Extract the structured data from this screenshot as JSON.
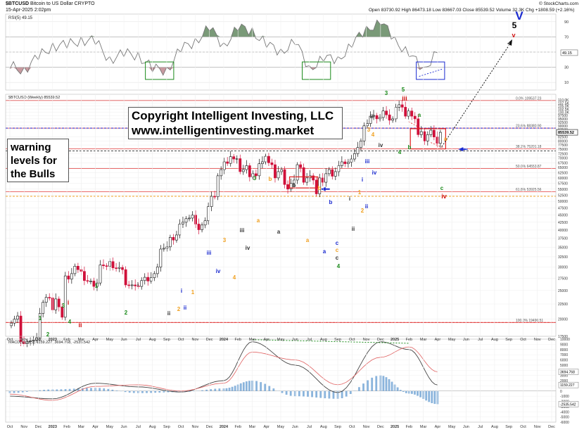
{
  "header": {
    "symbol": "$BTCUSD",
    "name": "Bitcoin to US Dollar",
    "exchange": "CRYPTO",
    "date": "15-Apr-2025 2:02pm",
    "ohlc": "Open 83730.92  High 86473.18  Low 83667.03  Close 85539.52  Volume 32.3K  Chg +1808.59 (+2.16%)",
    "credit": "© StockCharts.com"
  },
  "overlays": {
    "copyright_line1": "Copyright Intelligent Investing, LLC",
    "copyright_line2": "www.intelligentinvesting.market",
    "warning_line1": "warning",
    "warning_line2": "levels for",
    "warning_line3": "the Bulls"
  },
  "colors": {
    "up": "#111111",
    "down": "#d0103a",
    "fib": "#e03a3a",
    "blue_dashed": "#2222cc",
    "orange_dashed": "#f0a020",
    "rsi_fill_over": "#7a9a78",
    "rsi_fill_under": "#c89aa0",
    "macd_hist": "#8ab4dc",
    "wave_green": "#1a8a1a",
    "wave_orange": "#f0a020",
    "wave_blue": "#1a2ad0",
    "wave_red": "#d01010"
  },
  "chart_data": [
    {
      "type": "line",
      "title": "RSI(5) 49.15",
      "ylim": [
        0,
        100
      ],
      "yticks": [
        10,
        30,
        50,
        70,
        90
      ],
      "levels": [
        30,
        70
      ],
      "last_value_label": "49.15",
      "x": [
        "2022-10",
        "2022-11",
        "2022-12",
        "2023-01",
        "2023-02",
        "2023-03",
        "2023-04",
        "2023-05",
        "2023-06",
        "2023-07",
        "2023-08",
        "2023-09",
        "2023-10",
        "2023-11",
        "2023-12",
        "2024-01",
        "2024-02",
        "2024-03",
        "2024-04",
        "2024-05",
        "2024-06",
        "2024-07",
        "2024-08",
        "2024-09",
        "2024-10",
        "2024-11",
        "2024-12",
        "2025-01",
        "2025-02",
        "2025-03",
        "2025-04"
      ],
      "values": [
        28,
        30,
        40,
        62,
        55,
        70,
        60,
        44,
        44,
        50,
        24,
        30,
        50,
        68,
        78,
        62,
        78,
        82,
        56,
        54,
        60,
        32,
        38,
        44,
        56,
        84,
        86,
        70,
        44,
        30,
        49.15
      ]
    },
    {
      "type": "bar",
      "title": "$BTCUSD (Weekly) 85539.52",
      "scale": "log",
      "ylim": [
        17500,
        115000
      ],
      "last_price_label": "85539.52",
      "y_tick_labels": [
        "110.0K",
        "107.5K",
        "105.0K",
        "102.5K",
        "100.0K",
        "97500",
        "95000",
        "92500",
        "90000",
        "87500",
        "82500",
        "80000",
        "77500",
        "75000",
        "72500",
        "70000",
        "67500",
        "65000",
        "62500",
        "60000",
        "57500",
        "55000",
        "52500",
        "50000",
        "47500",
        "45000",
        "42500",
        "40000",
        "37500",
        "35000",
        "32500",
        "30000",
        "27500",
        "25000",
        "22500",
        "20000",
        "17500"
      ],
      "x_tick_labels": [
        "Oct",
        "Nov",
        "Dec",
        "2023",
        "Feb",
        "Mar",
        "Apr",
        "May",
        "Jun",
        "Jul",
        "Aug",
        "Sep",
        "Oct",
        "Nov",
        "Dec",
        "2024",
        "Feb",
        "Mar",
        "Apr",
        "May",
        "Jun",
        "Jul",
        "Aug",
        "Sep",
        "Oct",
        "Nov",
        "Dec",
        "2025",
        "Feb",
        "Mar",
        "Apr",
        "May",
        "Jun",
        "Jul",
        "Aug",
        "Sep",
        "Oct",
        "Nov",
        "Dec"
      ],
      "fib_levels": [
        {
          "label": "0.0% 109537.23",
          "value": 109537.23
        },
        {
          "label": "23.6% 88380.90",
          "value": 88380.9
        },
        {
          "label": "38.2% 75201.18",
          "value": 75201.18
        },
        {
          "label": "50.0% 64553.87",
          "value": 64553.87
        },
        {
          "label": "61.8% 53925.56",
          "value": 53925.56
        },
        {
          "label": "100.0% 19490.51",
          "value": 19490.51
        }
      ],
      "dashed_levels": [
        {
          "value": 88380,
          "color": "blue"
        },
        {
          "value": 74000,
          "color": "gray"
        },
        {
          "value": 52000,
          "color": "orange"
        },
        {
          "value": 19490,
          "color": "red"
        }
      ],
      "closes": [
        19400,
        20000,
        20500,
        16800,
        16500,
        16800,
        16900,
        17000,
        17300,
        20900,
        22800,
        23700,
        23600,
        21500,
        23400,
        22000,
        20300,
        28000,
        27300,
        28500,
        30200,
        29400,
        29000,
        27000,
        26900,
        26900,
        25800,
        26500,
        30500,
        30300,
        30200,
        31300,
        29800,
        29700,
        29900,
        29400,
        26100,
        26000,
        26100,
        25900,
        25800,
        27000,
        27700,
        26900,
        27600,
        28500,
        30000,
        34500,
        34700,
        35100,
        37800,
        37000,
        38500,
        41900,
        42500,
        43700,
        43900,
        44900,
        41900,
        40100,
        41600,
        43000,
        48000,
        52000,
        51800,
        61000,
        64000,
        68000,
        67200,
        70800,
        69500,
        69700,
        63000,
        64000,
        66000,
        60500,
        62000,
        61000,
        67000,
        68000,
        71000,
        67500,
        66500,
        60000,
        63000,
        64000,
        57000,
        55000,
        57500,
        59000,
        66500,
        65000,
        58000,
        60000,
        61000,
        59000,
        53000,
        60000,
        58000,
        62000,
        64000,
        60800,
        63000,
        66000,
        68000,
        67000,
        67800,
        69500,
        72500,
        76000,
        80000,
        90000,
        91600,
        97000,
        97500,
        95000,
        96000,
        101000,
        98000,
        94000,
        95000,
        104000,
        106000,
        104000,
        97000,
        101000,
        97000,
        95000,
        84000,
        86000,
        80000,
        84000,
        87000,
        82500,
        78500,
        85539.52
      ]
    },
    {
      "type": "line",
      "title": "MACD(12,26,9) 1159.227, 3694.768, -2535.542",
      "ylim": [
        -6000,
        10000
      ],
      "yticks": [
        10000,
        9000,
        8000,
        7000,
        6000,
        5000,
        4000,
        3000,
        2000,
        1000,
        0,
        -1000,
        -2000,
        -3000,
        -4000,
        -5000,
        -6000
      ],
      "last_labels": [
        "3694.768",
        "1159.227",
        "-2535.542"
      ],
      "x": [
        "2022-10",
        "2023-01",
        "2023-04",
        "2023-07",
        "2023-10",
        "2024-01",
        "2024-03",
        "2024-06",
        "2024-09",
        "2024-12",
        "2025-02",
        "2025-04"
      ],
      "series": [
        {
          "name": "MACD",
          "values": [
            -1000,
            -1500,
            1500,
            800,
            -200,
            2000,
            9500,
            5000,
            -300,
            9500,
            8000,
            1159
          ]
        },
        {
          "name": "Signal",
          "values": [
            -600,
            -1800,
            900,
            1200,
            0,
            1500,
            7500,
            6000,
            1200,
            6500,
            8500,
            3695
          ]
        },
        {
          "name": "Histogram",
          "values": [
            -400,
            300,
            600,
            -400,
            -200,
            500,
            2000,
            -1000,
            -1500,
            3000,
            -500,
            -2536
          ]
        }
      ]
    }
  ],
  "annotations": [
    {
      "t": "i",
      "c": "red"
    },
    {
      "t": "1",
      "c": "green"
    },
    {
      "t": "2",
      "c": "green"
    },
    {
      "t": "3",
      "c": "green"
    },
    {
      "t": "4",
      "c": "green"
    },
    {
      "t": "ii",
      "c": "red"
    },
    {
      "t": "1",
      "c": "green"
    },
    {
      "t": "2",
      "c": "green"
    },
    {
      "t": "i",
      "c": "gray"
    },
    {
      "t": "ii",
      "c": "gray"
    },
    {
      "t": "1",
      "c": "orange"
    },
    {
      "t": "2",
      "c": "orange"
    },
    {
      "t": "i",
      "c": "blue"
    },
    {
      "t": "ii",
      "c": "blue"
    },
    {
      "t": "iii",
      "c": "blue"
    },
    {
      "t": "iv",
      "c": "blue"
    },
    {
      "t": "3",
      "c": "orange"
    },
    {
      "t": "4",
      "c": "orange"
    },
    {
      "t": "iii",
      "c": "gray"
    },
    {
      "t": "iv",
      "c": "gray"
    },
    {
      "t": "3",
      "c": "green"
    },
    {
      "t": "b",
      "c": "orange"
    },
    {
      "t": "a",
      "c": "orange"
    },
    {
      "t": "a",
      "c": "gray"
    },
    {
      "t": "b",
      "c": "gray"
    },
    {
      "t": "b",
      "c": "orange"
    },
    {
      "t": "a",
      "c": "orange"
    },
    {
      "t": "b",
      "c": "blue"
    },
    {
      "t": "a",
      "c": "blue"
    },
    {
      "t": "c",
      "c": "blue"
    },
    {
      "t": "c",
      "c": "orange"
    },
    {
      "t": "c",
      "c": "gray"
    },
    {
      "t": "4",
      "c": "green"
    },
    {
      "t": "i",
      "c": "gray"
    },
    {
      "t": "ii",
      "c": "gray"
    },
    {
      "t": "1",
      "c": "orange"
    },
    {
      "t": "2",
      "c": "orange"
    },
    {
      "t": "i",
      "c": "blue"
    },
    {
      "t": "ii",
      "c": "blue"
    },
    {
      "t": "iii",
      "c": "blue"
    },
    {
      "t": "iv",
      "c": "blue"
    },
    {
      "t": "3",
      "c": "orange"
    },
    {
      "t": "4",
      "c": "orange"
    },
    {
      "t": "iii",
      "c": "gray"
    },
    {
      "t": "iv",
      "c": "gray"
    },
    {
      "t": "3",
      "c": "green"
    },
    {
      "t": "4",
      "c": "green"
    },
    {
      "t": "5",
      "c": "green"
    },
    {
      "t": "a",
      "c": "green"
    },
    {
      "t": "b",
      "c": "green"
    },
    {
      "t": "c",
      "c": "green"
    },
    {
      "t": "iii",
      "c": "red"
    },
    {
      "t": "iv",
      "c": "red"
    },
    {
      "t": "v",
      "c": "red"
    },
    {
      "t": "5",
      "c": "black"
    },
    {
      "t": "V",
      "c": "blue"
    },
    {
      "t": "a",
      "c": "orange"
    }
  ]
}
